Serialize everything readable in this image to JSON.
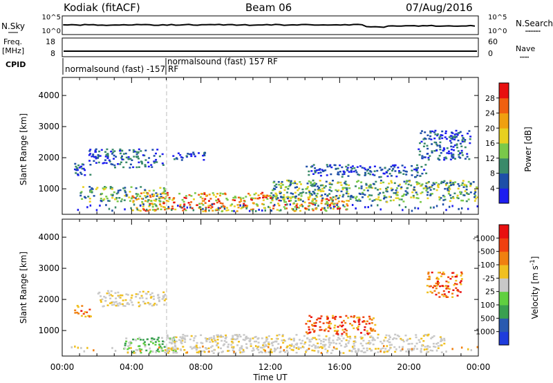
{
  "header": {
    "title": "Kodiak (fitACF)",
    "beam": "Beam 06",
    "date": "07/Aug/2016"
  },
  "summary_panels": {
    "left_labels": [
      "N.Sky",
      "Freq.",
      "[MHz]",
      "CPID"
    ],
    "right_labels": [
      "N.Search",
      "Nave"
    ],
    "nsky_ticks": [
      "10^5",
      "10^0"
    ],
    "nsearch_ticks": [
      "10^5",
      "10^0"
    ],
    "freq_ticks": [
      "18",
      "8"
    ],
    "nave_ticks": [
      "60",
      "0"
    ],
    "cpid_segments": [
      {
        "start_hour": 0.0,
        "label": "normalsound (fast) -157 RF"
      },
      {
        "start_hour": 6.0,
        "label": "normalsound (fast) 157 RF"
      }
    ],
    "freq_value_mhz": 8,
    "colors": {
      "trace": "#000000"
    }
  },
  "chart_data": [
    {
      "type": "heatmap",
      "title": "",
      "xlabel": "Time UT",
      "ylabel": "Slant Range [km]",
      "xlim_hours": [
        0,
        24
      ],
      "ylim": [
        180,
        4580
      ],
      "x_tick_labels": [
        "00:00",
        "04:00",
        "08:00",
        "12:00",
        "16:00",
        "20:00",
        "00:00"
      ],
      "y_tick_labels": [
        "1000",
        "2000",
        "3000",
        "4000"
      ],
      "colorbar": {
        "label": "Power [dB]",
        "ticks": [
          "4",
          "8",
          "12",
          "16",
          "20",
          "24",
          "28"
        ],
        "colors": [
          "#1e1ef0",
          "#1e4fa8",
          "#3a8a6a",
          "#7ac94a",
          "#e8d020",
          "#f0a010",
          "#f06010",
          "#e81010"
        ]
      },
      "echo_regions": [
        {
          "t0": 0.6,
          "t1": 1.6,
          "r0": 1450,
          "r1": 1850,
          "level": "low"
        },
        {
          "t0": 1.5,
          "t1": 5.8,
          "r0": 1700,
          "r1": 2300,
          "level": "low"
        },
        {
          "t0": 6.3,
          "t1": 8.3,
          "r0": 1950,
          "r1": 2200,
          "level": "low"
        },
        {
          "t0": 1.0,
          "t1": 6.0,
          "r0": 600,
          "r1": 1100,
          "level": "mid"
        },
        {
          "t0": 4.0,
          "t1": 12.0,
          "r0": 300,
          "r1": 900,
          "level": "high"
        },
        {
          "t0": 12.0,
          "t1": 16.5,
          "r0": 300,
          "r1": 800,
          "level": "high"
        },
        {
          "t0": 12.0,
          "t1": 23.9,
          "r0": 600,
          "r1": 1300,
          "level": "mid"
        },
        {
          "t0": 14.0,
          "t1": 21.0,
          "r0": 1400,
          "r1": 1800,
          "level": "low"
        },
        {
          "t0": 20.5,
          "t1": 23.5,
          "r0": 1950,
          "r1": 2900,
          "level": "low"
        }
      ]
    },
    {
      "type": "heatmap",
      "title": "",
      "xlabel": "Time UT",
      "ylabel": "Slant Range [km]",
      "xlim_hours": [
        0,
        24
      ],
      "ylim": [
        180,
        4580
      ],
      "x_tick_labels": [
        "00:00",
        "04:00",
        "08:00",
        "12:00",
        "16:00",
        "20:00",
        "00:00"
      ],
      "y_tick_labels": [
        "1000",
        "2000",
        "3000",
        "4000"
      ],
      "colorbar": {
        "label": "Velocity [m s-1]",
        "ticks": [
          "1000",
          "500",
          "100",
          "25",
          "-25",
          "-100",
          "-500",
          "-1000"
        ],
        "colors": [
          "#1e3cdc",
          "#2a5ab0",
          "#3aa050",
          "#60d040",
          "#c8c8c8",
          "#f0c020",
          "#f08010",
          "#f04010",
          "#e81010"
        ]
      },
      "echo_regions": [
        {
          "t0": 0.6,
          "t1": 1.6,
          "r0": 1450,
          "r1": 1850,
          "level": "neg"
        },
        {
          "t0": 2.0,
          "t1": 6.0,
          "r0": 1800,
          "r1": 2300,
          "level": "zero"
        },
        {
          "t0": 3.5,
          "t1": 6.5,
          "r0": 300,
          "r1": 800,
          "level": "pos"
        },
        {
          "t0": 6.0,
          "t1": 22.0,
          "r0": 300,
          "r1": 900,
          "level": "zero"
        },
        {
          "t0": 14.0,
          "t1": 18.0,
          "r0": 900,
          "r1": 1500,
          "level": "neg"
        },
        {
          "t0": 21.0,
          "t1": 23.0,
          "r0": 2100,
          "r1": 2900,
          "level": "neg"
        }
      ]
    }
  ]
}
